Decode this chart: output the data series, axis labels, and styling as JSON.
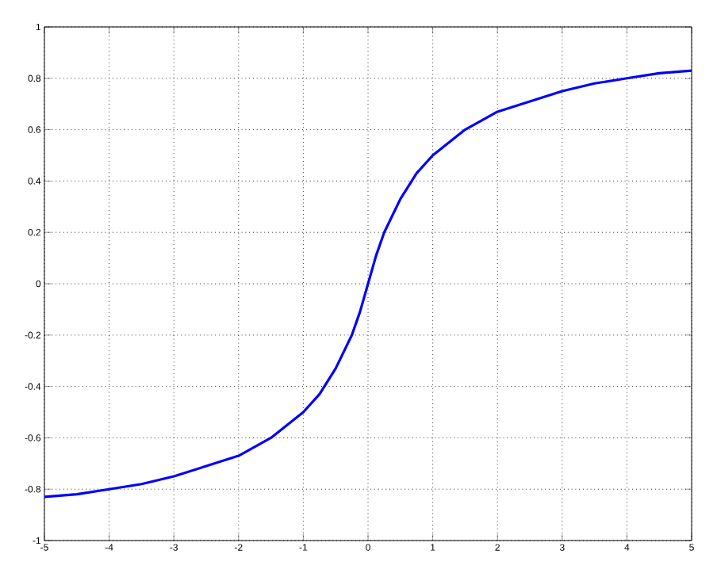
{
  "chart_data": {
    "type": "line",
    "x": [
      -5,
      -4.5,
      -4,
      -3.5,
      -3,
      -2.5,
      -2,
      -1.5,
      -1,
      -0.75,
      -0.5,
      -0.25,
      -0.125,
      0,
      0.125,
      0.25,
      0.5,
      0.75,
      1,
      1.5,
      2,
      2.5,
      3,
      3.5,
      4,
      4.5,
      5
    ],
    "series": [
      {
        "color": "#0000ff",
        "values": [
          -0.83,
          -0.82,
          -0.8,
          -0.78,
          -0.75,
          -0.71,
          -0.67,
          -0.6,
          -0.5,
          -0.43,
          -0.33,
          -0.2,
          -0.11,
          0,
          0.11,
          0.2,
          0.33,
          0.43,
          0.5,
          0.6,
          0.67,
          0.71,
          0.75,
          0.78,
          0.8,
          0.82,
          0.83
        ]
      }
    ],
    "xlim": [
      -5,
      5
    ],
    "ylim": [
      -1,
      1
    ],
    "xticks": [
      -5,
      -4,
      -3,
      -2,
      -1,
      0,
      1,
      2,
      3,
      4,
      5
    ],
    "yticks": [
      -1,
      -0.8,
      -0.6,
      -0.4,
      -0.2,
      0,
      0.2,
      0.4,
      0.6,
      0.8,
      1
    ],
    "grid": true,
    "marker": "none",
    "line_style": "solid"
  }
}
